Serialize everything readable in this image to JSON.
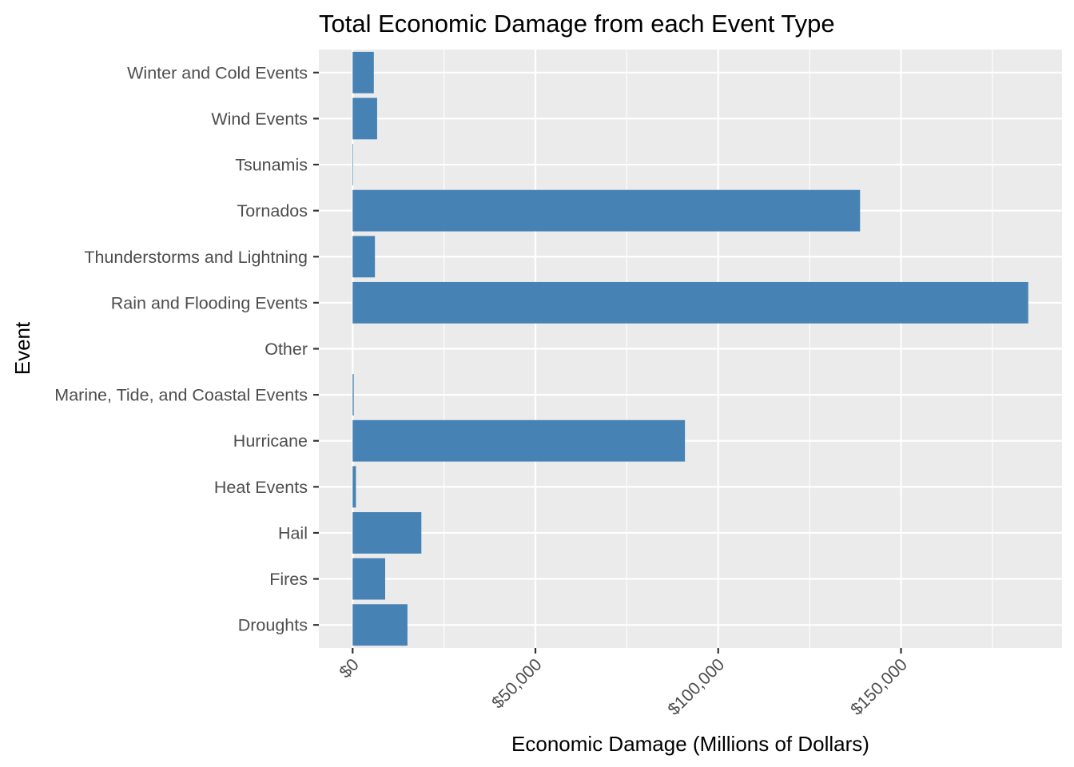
{
  "chart_data": {
    "type": "bar",
    "orientation": "horizontal",
    "title": "Total Economic Damage from each Event Type",
    "xlabel": "Economic Damage (Millions of Dollars)",
    "ylabel": "Event",
    "categories": [
      "Droughts",
      "Fires",
      "Hail",
      "Heat Events",
      "Hurricane",
      "Marine, Tide, and Coastal Events",
      "Other",
      "Rain and Flooding Events",
      "Thunderstorms and Lightning",
      "Tornados",
      "Tsunamis",
      "Wind Events",
      "Winter and Cold Events"
    ],
    "values": [
      15000,
      8900,
      18800,
      900,
      90900,
      300,
      0,
      184800,
      6100,
      138800,
      150,
      6700,
      5800
    ],
    "x_ticks": [
      0,
      50000,
      100000,
      150000
    ],
    "x_tick_labels": [
      "$0",
      "$50,000",
      "$100,000",
      "$150,000"
    ],
    "xlim": [
      -9240,
      194040
    ],
    "bar_color": "#4682B4",
    "panel_color": "#EBEBEB",
    "grid_color": "#FFFFFF",
    "grid": true,
    "legend": "none"
  }
}
